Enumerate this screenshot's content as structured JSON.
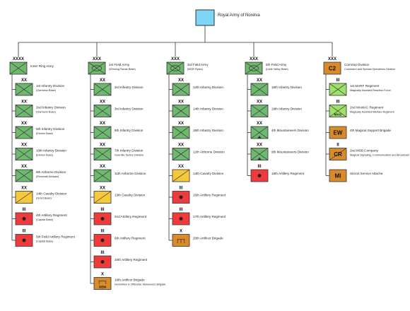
{
  "root": {
    "label": "Royal Army of Norelva",
    "color": "#7dd6f5"
  },
  "colors": {
    "infantry": "#6fb86f",
    "cavalry": "#f6c93a",
    "artillery": "#ef3b3b",
    "mounted": "#6fb86f",
    "artificer": "#d98a2a",
    "c2": "#d98a2a",
    "recon": "#9ee06a"
  },
  "columns": [
    {
      "hq": {
        "echelon": "XXXX",
        "type": "infantry",
        "title": "Inner Ring Army",
        "subtitle": ""
      },
      "units": [
        {
          "echelon": "XX",
          "type": "infantry",
          "title": "1st Infantry Division",
          "subtitle": "(Garmenz Base)"
        },
        {
          "echelon": "XX",
          "type": "infantry",
          "title": "2nd Infantry Division",
          "subtitle": "(Garmenz Base)"
        },
        {
          "echelon": "XX",
          "type": "infantry",
          "title": "5th Infantry Division",
          "subtitle": "(Elorion Base)"
        },
        {
          "echelon": "XX",
          "type": "infantry",
          "title": "10th Infantry Division",
          "subtitle": "(Elorion Base)"
        },
        {
          "echelon": "XX",
          "type": "infantry",
          "title": "8th Airborne Division",
          "subtitle": "(Riverside Airbase)"
        },
        {
          "echelon": "XX",
          "type": "cavalry",
          "title": "14th Cavalry Division",
          "subtitle": "(Grant Base)"
        },
        {
          "echelon": "III",
          "type": "artillery",
          "title": "4th Artillery Regiment",
          "subtitle": "(Capital Base)"
        },
        {
          "echelon": "III",
          "type": "artillery",
          "title": "5th Field Artillery Regiment",
          "subtitle": "(Capital Base)"
        }
      ]
    },
    {
      "hq": {
        "echelon": "XXX",
        "type": "mounted",
        "title": "1st Field Army",
        "subtitle": "(Winning Sands Base)"
      },
      "units": [
        {
          "echelon": "XX",
          "type": "infantry",
          "title": "3rd Infantry Division",
          "subtitle": ""
        },
        {
          "echelon": "XX",
          "type": "infantry",
          "title": "3rd Infantry Division",
          "subtitle": ""
        },
        {
          "echelon": "XX",
          "type": "infantry",
          "title": "6th Infantry Division",
          "subtitle": ""
        },
        {
          "echelon": "XX",
          "type": "infantry",
          "title": "7th Infantry Division",
          "subtitle": "Guerrilla Tactics Division"
        },
        {
          "echelon": "XX",
          "type": "infantry",
          "title": "11th Airborne Division",
          "subtitle": ""
        },
        {
          "echelon": "XX",
          "type": "cavalry",
          "title": "13th Cavalry Division",
          "subtitle": ""
        },
        {
          "echelon": "III",
          "type": "artillery",
          "title": "2nd Artillery Regiment",
          "subtitle": ""
        },
        {
          "echelon": "III",
          "type": "artillery",
          "title": "6th Artillery Regiment",
          "subtitle": ""
        },
        {
          "echelon": "III",
          "type": "artillery",
          "title": "10th Artillery Regiment",
          "subtitle": ""
        },
        {
          "echelon": "X",
          "type": "artificer",
          "title": "16th Artificer Brigade",
          "subtitle": "Demolition & Offensive Maneuvers Brigade",
          "code": "DEM"
        }
      ]
    },
    {
      "hq": {
        "echelon": "XXX",
        "type": "mounted",
        "title": "3rd Field Army",
        "subtitle": "(MOB Rylan)"
      },
      "units": [
        {
          "echelon": "XX",
          "type": "infantry",
          "title": "12th Infantry Division",
          "subtitle": ""
        },
        {
          "echelon": "XX",
          "type": "infantry",
          "title": "14th Infantry Division",
          "subtitle": ""
        },
        {
          "echelon": "XX",
          "type": "infantry",
          "title": "15th Infantry Division",
          "subtitle": ""
        },
        {
          "echelon": "XX",
          "type": "infantry",
          "title": "12th Airborne Division",
          "subtitle": ""
        },
        {
          "echelon": "XX",
          "type": "cavalry",
          "title": "14th Cavalry Division",
          "subtitle": ""
        },
        {
          "echelon": "III",
          "type": "artillery",
          "title": "15th Artillery Regiment",
          "subtitle": ""
        },
        {
          "echelon": "III",
          "type": "artillery",
          "title": "17th Artillery Regiment",
          "subtitle": ""
        },
        {
          "echelon": "X",
          "type": "artificer",
          "title": "20th Artificer Brigade",
          "subtitle": "",
          "code": ""
        }
      ]
    },
    {
      "hq": {
        "echelon": "XXX",
        "type": "mounted",
        "title": "5th Field Army",
        "subtitle": "(Lade Valley Base)"
      },
      "units": [
        {
          "echelon": "XX",
          "type": "infantry",
          "title": "18th Infantry Division",
          "subtitle": ""
        },
        {
          "echelon": "XX",
          "type": "infantry",
          "title": "19th Infantry Division",
          "subtitle": ""
        },
        {
          "echelon": "XX",
          "type": "mountain",
          "title": "4th Mountaineers Division",
          "subtitle": ""
        },
        {
          "echelon": "XX",
          "type": "mountain",
          "title": "9th Mountaineers Division",
          "subtitle": ""
        },
        {
          "echelon": "III",
          "type": "artillery",
          "title": "18th Artillery Regiment",
          "subtitle": ""
        }
      ]
    },
    {
      "hq": {
        "echelon": "XXX",
        "type": "c2",
        "title": "ComSop Division",
        "subtitle": "Command and Special Operations Division",
        "code": "C2"
      },
      "units": [
        {
          "echelon": "III",
          "type": "recon",
          "title": "1st MARF Regiment",
          "subtitle": "Magically Assisted Reaction Force"
        },
        {
          "echelon": "III",
          "type": "recon2",
          "title": "2nd MAWAC Regiment",
          "subtitle": "Magically Assisted Warfare Regiment",
          "code": "MAG"
        },
        {
          "echelon": "",
          "type": "c2",
          "title": "4th Magical Support Brigade",
          "subtitle": "",
          "code": "EW"
        },
        {
          "echelon": "II",
          "type": "c2diag",
          "title": "2nd MSB Company",
          "subtitle": "Magical Signaling, Communication and Broadcast",
          "code": "CR"
        },
        {
          "echelon": "",
          "type": "c2",
          "title": "Secret Service Attache",
          "subtitle": "",
          "code": "MI"
        }
      ]
    }
  ]
}
